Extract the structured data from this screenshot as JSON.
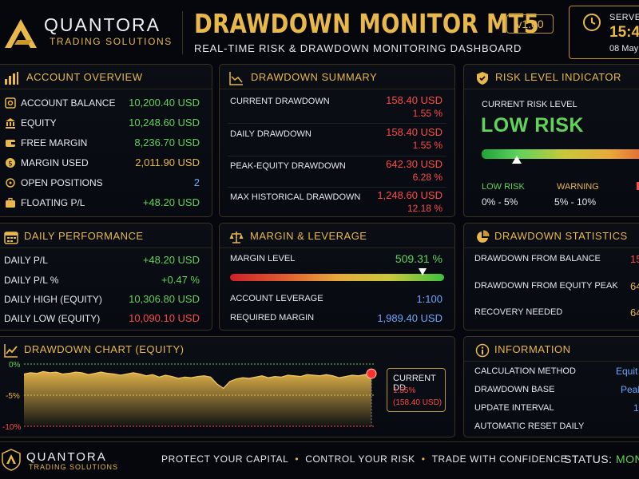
{
  "header": {
    "brand_name": "QUANTORA",
    "brand_sub": "TRADING SOLUTIONS",
    "title": "DRAWDOWN MONITOR MT5",
    "subtitle": "REAL-TIME RISK & DRAWDOWN MONITORING DASHBOARD",
    "version": "v1.00",
    "server_label": "SERVER",
    "server_time": "15:4",
    "server_date": "08 May"
  },
  "account": {
    "title": "ACCOUNT OVERVIEW",
    "rows": [
      {
        "label": "ACCOUNT BALANCE",
        "value": "10,200.40 USD",
        "icon": "bank-vault-icon"
      },
      {
        "label": "EQUITY",
        "value": "10,248.60 USD",
        "icon": "bank-building-icon"
      },
      {
        "label": "FREE MARGIN",
        "value": "8,236.70 USD",
        "icon": "wallet-icon"
      },
      {
        "label": "MARGIN USED",
        "value": "2,011.90 USD",
        "icon": "coin-icon"
      },
      {
        "label": "OPEN POSITIONS",
        "value": "2",
        "icon": "crosshair-icon"
      },
      {
        "label": "FLOATING P/L",
        "value": "+48.20 USD",
        "icon": "briefcase-icon"
      }
    ]
  },
  "drawdown_summary": {
    "title": "DRAWDOWN SUMMARY",
    "rows": [
      {
        "label": "CURRENT DRAWDOWN",
        "value": "158.40 USD",
        "pct": "1.55 %"
      },
      {
        "label": "DAILY DRAWDOWN",
        "value": "158.40 USD",
        "pct": "1.55 %"
      },
      {
        "label": "PEAK-EQUITY DRAWDOWN",
        "value": "642.30 USD",
        "pct": "6.28 %"
      },
      {
        "label": "MAX HISTORICAL DRAWDOWN",
        "value": "1,248.60 USD",
        "pct": "12.18 %"
      }
    ]
  },
  "risk": {
    "title": "RISK LEVEL INDICATOR",
    "label": "CURRENT RISK LEVEL",
    "level": "LOW RISK",
    "marker_fraction": 0.19,
    "legend": [
      {
        "name": "LOW RISK",
        "range": "0% - 5%",
        "color": "#5fd35a"
      },
      {
        "name": "WARNING",
        "range": "5% - 10%",
        "color": "#e8b84a"
      }
    ]
  },
  "daily": {
    "title": "DAILY PERFORMANCE",
    "rows": [
      {
        "label": "DAILY P/L",
        "value": "+48.20 USD"
      },
      {
        "label": "DAILY P/L %",
        "value": "+0.47 %"
      },
      {
        "label": "DAILY HIGH (EQUITY)",
        "value": "10,306.80 USD"
      },
      {
        "label": "DAILY LOW (EQUITY)",
        "value": "10,090.10 USD"
      }
    ]
  },
  "margin": {
    "title": "MARGIN & LEVERAGE",
    "level_label": "MARGIN LEVEL",
    "level_value": "509.31 %",
    "marker_fraction": 0.9,
    "leverage_label": "ACCOUNT LEVERAGE",
    "leverage_value": "1:100",
    "required_label": "REQUIRED MARGIN",
    "required_value": "1,989.40 USD"
  },
  "stats": {
    "title": "DRAWDOWN STATISTICS",
    "rows": [
      {
        "label": "DRAWDOWN FROM BALANCE",
        "value": "15"
      },
      {
        "label": "DRAWDOWN FROM EQUITY PEAK",
        "value": "64"
      },
      {
        "label": "RECOVERY NEEDED",
        "value": "64"
      }
    ]
  },
  "chart": {
    "title": "DRAWDOWN CHART (EQUITY)",
    "y_ticks": [
      "0%",
      "-5%",
      "-10%"
    ],
    "callout_title": "CURRENT DD",
    "callout_pct": "1.55%",
    "callout_usd": "(158.40 USD)"
  },
  "chart_data": {
    "type": "area",
    "title": "DRAWDOWN CHART (EQUITY)",
    "ylim": [
      -10,
      0
    ],
    "y_ticks": [
      0,
      -5,
      -10
    ],
    "values": [
      -1.6,
      -1.4,
      -1.5,
      -1.2,
      -1.4,
      -1.3,
      -1.6,
      -1.5,
      -1.3,
      -1.4,
      -1.7,
      -1.5,
      -1.3,
      -1.5,
      -1.6,
      -1.8,
      -1.6,
      -1.4,
      -1.6,
      -1.9,
      -1.7,
      -2.1,
      -1.8,
      -2.0,
      -2.3,
      -2.1,
      -2.2,
      -2.0,
      -1.9,
      -2.1,
      -3.2,
      -3.9,
      -2.8,
      -2.4,
      -2.2,
      -2.3,
      -2.1,
      -1.9,
      -2.2,
      -2.0,
      -2.1,
      -1.8,
      -1.9,
      -2.0,
      -1.7,
      -1.8,
      -1.9,
      -1.7,
      -1.9,
      -2.2,
      -2.0,
      -1.8,
      -1.9,
      -1.7,
      -1.55
    ],
    "current": -1.55
  },
  "info": {
    "title": "INFORMATION",
    "rows": [
      {
        "label": "CALCULATION METHOD",
        "value": "Equit"
      },
      {
        "label": "DRAWDOWN BASE",
        "value": "Peal"
      },
      {
        "label": "UPDATE INTERVAL",
        "value": "1"
      },
      {
        "label": "AUTOMATIC RESET DAILY",
        "value": ""
      }
    ]
  },
  "footer": {
    "brand_name": "QUANTORA",
    "brand_sub": "TRADING SOLUTIONS",
    "slogans": [
      "PROTECT YOUR CAPITAL",
      "CONTROL YOUR RISK",
      "TRADE WITH CONFIDENCE"
    ],
    "status_label": "STATUS:",
    "status_value": "MONI"
  },
  "colors": {
    "gold": "#e8b84a",
    "green": "#5fd35a",
    "red": "#ff4a4a",
    "blue": "#6aa8ff"
  }
}
